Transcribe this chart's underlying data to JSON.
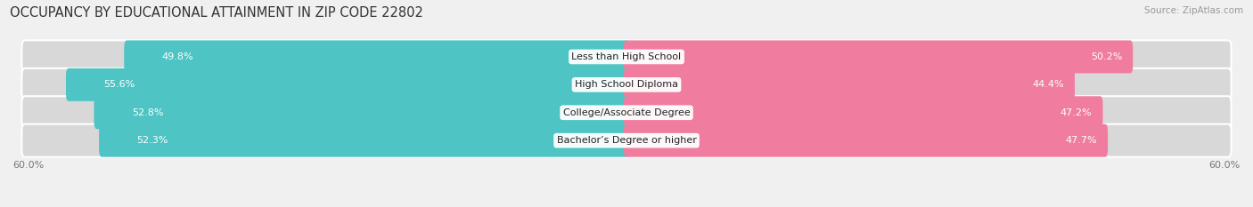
{
  "title": "OCCUPANCY BY EDUCATIONAL ATTAINMENT IN ZIP CODE 22802",
  "source": "Source: ZipAtlas.com",
  "categories": [
    "Less than High School",
    "High School Diploma",
    "College/Associate Degree",
    "Bachelor’s Degree or higher"
  ],
  "owner_values": [
    49.8,
    55.6,
    52.8,
    52.3
  ],
  "renter_values": [
    50.2,
    44.4,
    47.2,
    47.7
  ],
  "owner_color": "#4EC4C4",
  "renter_color": "#F07DA0",
  "owner_light_color": "#A8E0E0",
  "renter_light_color": "#F8BBD0",
  "bar_bg_color": "#E0E0E0",
  "x_max": 60.0,
  "axis_label": "60.0%",
  "title_fontsize": 10.5,
  "source_fontsize": 7.5,
  "value_fontsize": 8,
  "cat_fontsize": 8,
  "bar_height": 0.62,
  "background_color": "#F0F0F0",
  "bar_background_color": "#D8D8D8",
  "text_color": "#555555"
}
